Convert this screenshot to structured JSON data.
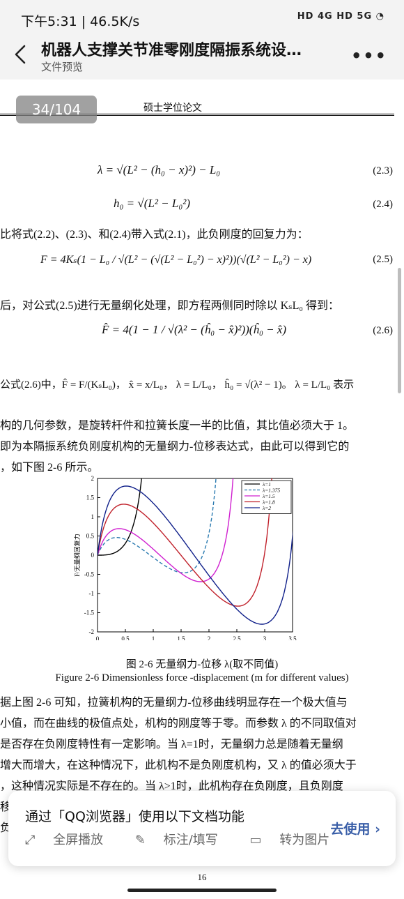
{
  "status": {
    "time": "下午5:31 | 46.5K/s",
    "right": "HD 4G  HD 5G  ◔"
  },
  "app_bar": {
    "title": "机器人支撑关节准零刚度隔振系统设…",
    "subtitle": "文件预览"
  },
  "page": {
    "counter": "34/104",
    "running_head": "硕士学位论文",
    "page_number": "16"
  },
  "text": {
    "eq23": "λ = √(L² − (h₀ − x)²) − L₀",
    "eq23_no": "(2.3)",
    "eq24": "h₀ = √(L² − L₀²)",
    "eq24_no": "(2.4)",
    "line1": "比将式(2.2)、(2.3)、和(2.4)带入式(2.1)，此负刚度的回复力为：",
    "eq25": "F = 4Kₛ(1 − L₀ / √(L² − (√(L² − L₀²) − x)²))(√(L² − L₀²) − x)",
    "eq25_no": "(2.5)",
    "line2": "后，对公式(2.5)进行无量纲化处理，即方程两侧同时除以 KₛL₀ 得到：",
    "eq26": "F̂ = 4(1 − 1 / √(λ² − (ĥ₀ − x̂)²))(ĥ₀ − x̂)",
    "eq26_no": "(2.6)",
    "line3": "公式(2.6)中，F̂ = F/(KₛL₀)， x̂ = x/L₀， λ = L/L₀， ĥ₀ = √(λ² − 1)。 λ = L/L₀ 表示",
    "line4": "构的几何参数，是旋转杆件和拉簧长度一半的比值，其比值必须大于 1。",
    "line5": "即为本隔振系统负刚度机构的无量纲力-位移表达式，由此可以得到它的",
    "line6": "，如下图 2-6 所示。",
    "caption_cn": "图 2-6 无量纲力-位移 λ(取不同值)",
    "caption_en": "Figure 2-6 Dimensionless force -displacement (m for different values)",
    "p1": "据上图 2-6 可知，拉簧机构的无量纲力-位移曲线明显存在一个极大值与",
    "p2": "小值，而在曲线的极值点处，机构的刚度等于零。而参数 λ 的不同取值对",
    "p3": "是否存在负刚度特性有一定影响。当 λ=1时，无量纲力总是随着无量纲",
    "p4": "增大而增大，在这种情况下，此机构不是负刚度机构，又 λ 的值必须大于",
    "p5": "，这种情况实际是不存在的。当 λ>1时，此机构存在负刚度，且负刚度",
    "p6": "移",
    "p7": "负"
  },
  "banner": {
    "title": "通过「QQ浏览器」使用以下文档功能",
    "action_fullscreen": "全屏播放",
    "action_annotate": "标注/填写",
    "action_image": "转为图片",
    "go": "去使用 ›"
  },
  "chart_data": {
    "type": "line",
    "xlabel": "x/无量纲位移",
    "ylabel": "F/无量纲回复力",
    "xlim": [
      0,
      3.5
    ],
    "ylim": [
      -2,
      2
    ],
    "x_ticks": [
      "0",
      "0.5",
      "1",
      "1.5",
      "2",
      "2.5",
      "3",
      "3.5"
    ],
    "y_ticks": [
      "2",
      "1.5",
      "1",
      "0.5",
      "0",
      "-0.5",
      "-1",
      "-1.5",
      "-2"
    ],
    "legend_position": "top-right",
    "series": [
      {
        "name": "λ=1",
        "lambda": 1,
        "color": "#000000",
        "dash": false
      },
      {
        "name": "λ=1.375",
        "lambda": 1.375,
        "color": "#2a7ab0",
        "dash": true
      },
      {
        "name": "λ=1.5",
        "lambda": 1.5,
        "color": "#d020d0",
        "dash": false
      },
      {
        "name": "λ=1.8",
        "lambda": 1.8,
        "color": "#c0202a",
        "dash": false
      },
      {
        "name": "λ=2",
        "lambda": 2,
        "color": "#10208a",
        "dash": false
      }
    ]
  }
}
